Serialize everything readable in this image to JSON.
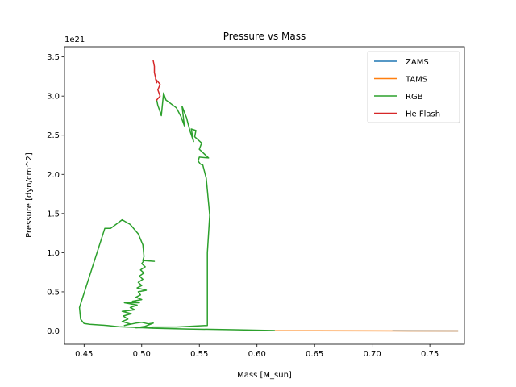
{
  "chart_data": {
    "type": "line",
    "title": "Pressure vs Mass",
    "xlabel": "Mass [M_sun]",
    "ylabel": "Pressure [dyn/cm^2]",
    "y_multiplier": "1e21",
    "xlim": [
      0.433,
      0.78
    ],
    "ylim": [
      -0.17,
      3.63
    ],
    "x_ticks": [
      0.45,
      0.5,
      0.55,
      0.6,
      0.65,
      0.7,
      0.75
    ],
    "x_tick_labels": [
      "0.45",
      "0.50",
      "0.55",
      "0.60",
      "0.65",
      "0.70",
      "0.75"
    ],
    "y_ticks": [
      0.0,
      0.5,
      1.0,
      1.5,
      2.0,
      2.5,
      3.0,
      3.5
    ],
    "y_tick_labels": [
      "0.0",
      "0.5",
      "1.0",
      "1.5",
      "2.0",
      "2.5",
      "3.0",
      "3.5"
    ],
    "grid": false,
    "legend_position": "top-right",
    "series": [
      {
        "name": "ZAMS",
        "color": "#1f77b4",
        "points": [
          [
            0.718,
            0.002
          ],
          [
            0.774,
            0.0
          ]
        ]
      },
      {
        "name": "TAMS",
        "color": "#ff7f0e",
        "points": [
          [
            0.615,
            0.003
          ],
          [
            0.65,
            0.002
          ],
          [
            0.7,
            0.001
          ],
          [
            0.75,
            0.0
          ],
          [
            0.774,
            0.0
          ]
        ]
      },
      {
        "name": "RGB",
        "color": "#2ca02c",
        "points": [
          [
            0.615,
            0.005
          ],
          [
            0.58,
            0.015
          ],
          [
            0.54,
            0.025
          ],
          [
            0.51,
            0.035
          ],
          [
            0.495,
            0.045
          ],
          [
            0.48,
            0.055
          ],
          [
            0.47,
            0.07
          ],
          [
            0.455,
            0.085
          ],
          [
            0.45,
            0.095
          ],
          [
            0.447,
            0.15
          ],
          [
            0.446,
            0.3
          ],
          [
            0.468,
            1.31
          ],
          [
            0.473,
            1.31
          ],
          [
            0.483,
            1.42
          ],
          [
            0.49,
            1.36
          ],
          [
            0.497,
            1.24
          ],
          [
            0.501,
            1.1
          ],
          [
            0.502,
            0.95
          ],
          [
            0.501,
            0.9
          ],
          [
            0.511,
            0.89
          ],
          [
            0.502,
            0.9
          ],
          [
            0.5,
            0.86
          ],
          [
            0.503,
            0.82
          ],
          [
            0.499,
            0.78
          ],
          [
            0.502,
            0.74
          ],
          [
            0.498,
            0.7
          ],
          [
            0.501,
            0.66
          ],
          [
            0.497,
            0.62
          ],
          [
            0.5,
            0.58
          ],
          [
            0.496,
            0.55
          ],
          [
            0.504,
            0.52
          ],
          [
            0.497,
            0.5
          ],
          [
            0.499,
            0.46
          ],
          [
            0.495,
            0.43
          ],
          [
            0.5,
            0.4
          ],
          [
            0.492,
            0.38
          ],
          [
            0.498,
            0.36
          ],
          [
            0.485,
            0.36
          ],
          [
            0.496,
            0.33
          ],
          [
            0.49,
            0.3
          ],
          [
            0.494,
            0.27
          ],
          [
            0.483,
            0.25
          ],
          [
            0.491,
            0.22
          ],
          [
            0.484,
            0.19
          ],
          [
            0.488,
            0.15
          ],
          [
            0.483,
            0.12
          ],
          [
            0.49,
            0.09
          ],
          [
            0.485,
            0.07
          ],
          [
            0.495,
            0.1
          ],
          [
            0.5,
            0.11
          ],
          [
            0.506,
            0.09
          ],
          [
            0.51,
            0.1
          ],
          [
            0.503,
            0.06
          ],
          [
            0.495,
            0.04
          ],
          [
            0.51,
            0.05
          ],
          [
            0.53,
            0.05
          ],
          [
            0.557,
            0.07
          ],
          [
            0.557,
            0.55
          ],
          [
            0.557,
            1.0
          ],
          [
            0.559,
            1.48
          ],
          [
            0.556,
            1.95
          ],
          [
            0.553,
            2.12
          ],
          [
            0.551,
            2.13
          ],
          [
            0.549,
            2.17
          ],
          [
            0.55,
            2.22
          ],
          [
            0.558,
            2.21
          ],
          [
            0.55,
            2.32
          ],
          [
            0.552,
            2.4
          ],
          [
            0.546,
            2.48
          ],
          [
            0.547,
            2.56
          ],
          [
            0.543,
            2.58
          ],
          [
            0.545,
            2.42
          ],
          [
            0.542,
            2.55
          ],
          [
            0.54,
            2.66
          ],
          [
            0.539,
            2.72
          ],
          [
            0.535,
            2.87
          ],
          [
            0.537,
            2.62
          ],
          [
            0.534,
            2.74
          ],
          [
            0.53,
            2.85
          ],
          [
            0.521,
            2.95
          ],
          [
            0.519,
            3.04
          ],
          [
            0.517,
            2.75
          ],
          [
            0.516,
            2.8
          ],
          [
            0.514,
            2.88
          ],
          [
            0.513,
            2.95
          ]
        ]
      },
      {
        "name": "He Flash",
        "color": "#d62728",
        "points": [
          [
            0.513,
            2.95
          ],
          [
            0.516,
            3.0
          ],
          [
            0.514,
            3.08
          ],
          [
            0.516,
            3.15
          ],
          [
            0.512,
            3.22
          ],
          [
            0.513,
            3.17
          ],
          [
            0.511,
            3.3
          ],
          [
            0.511,
            3.38
          ],
          [
            0.51,
            3.45
          ]
        ]
      }
    ]
  }
}
